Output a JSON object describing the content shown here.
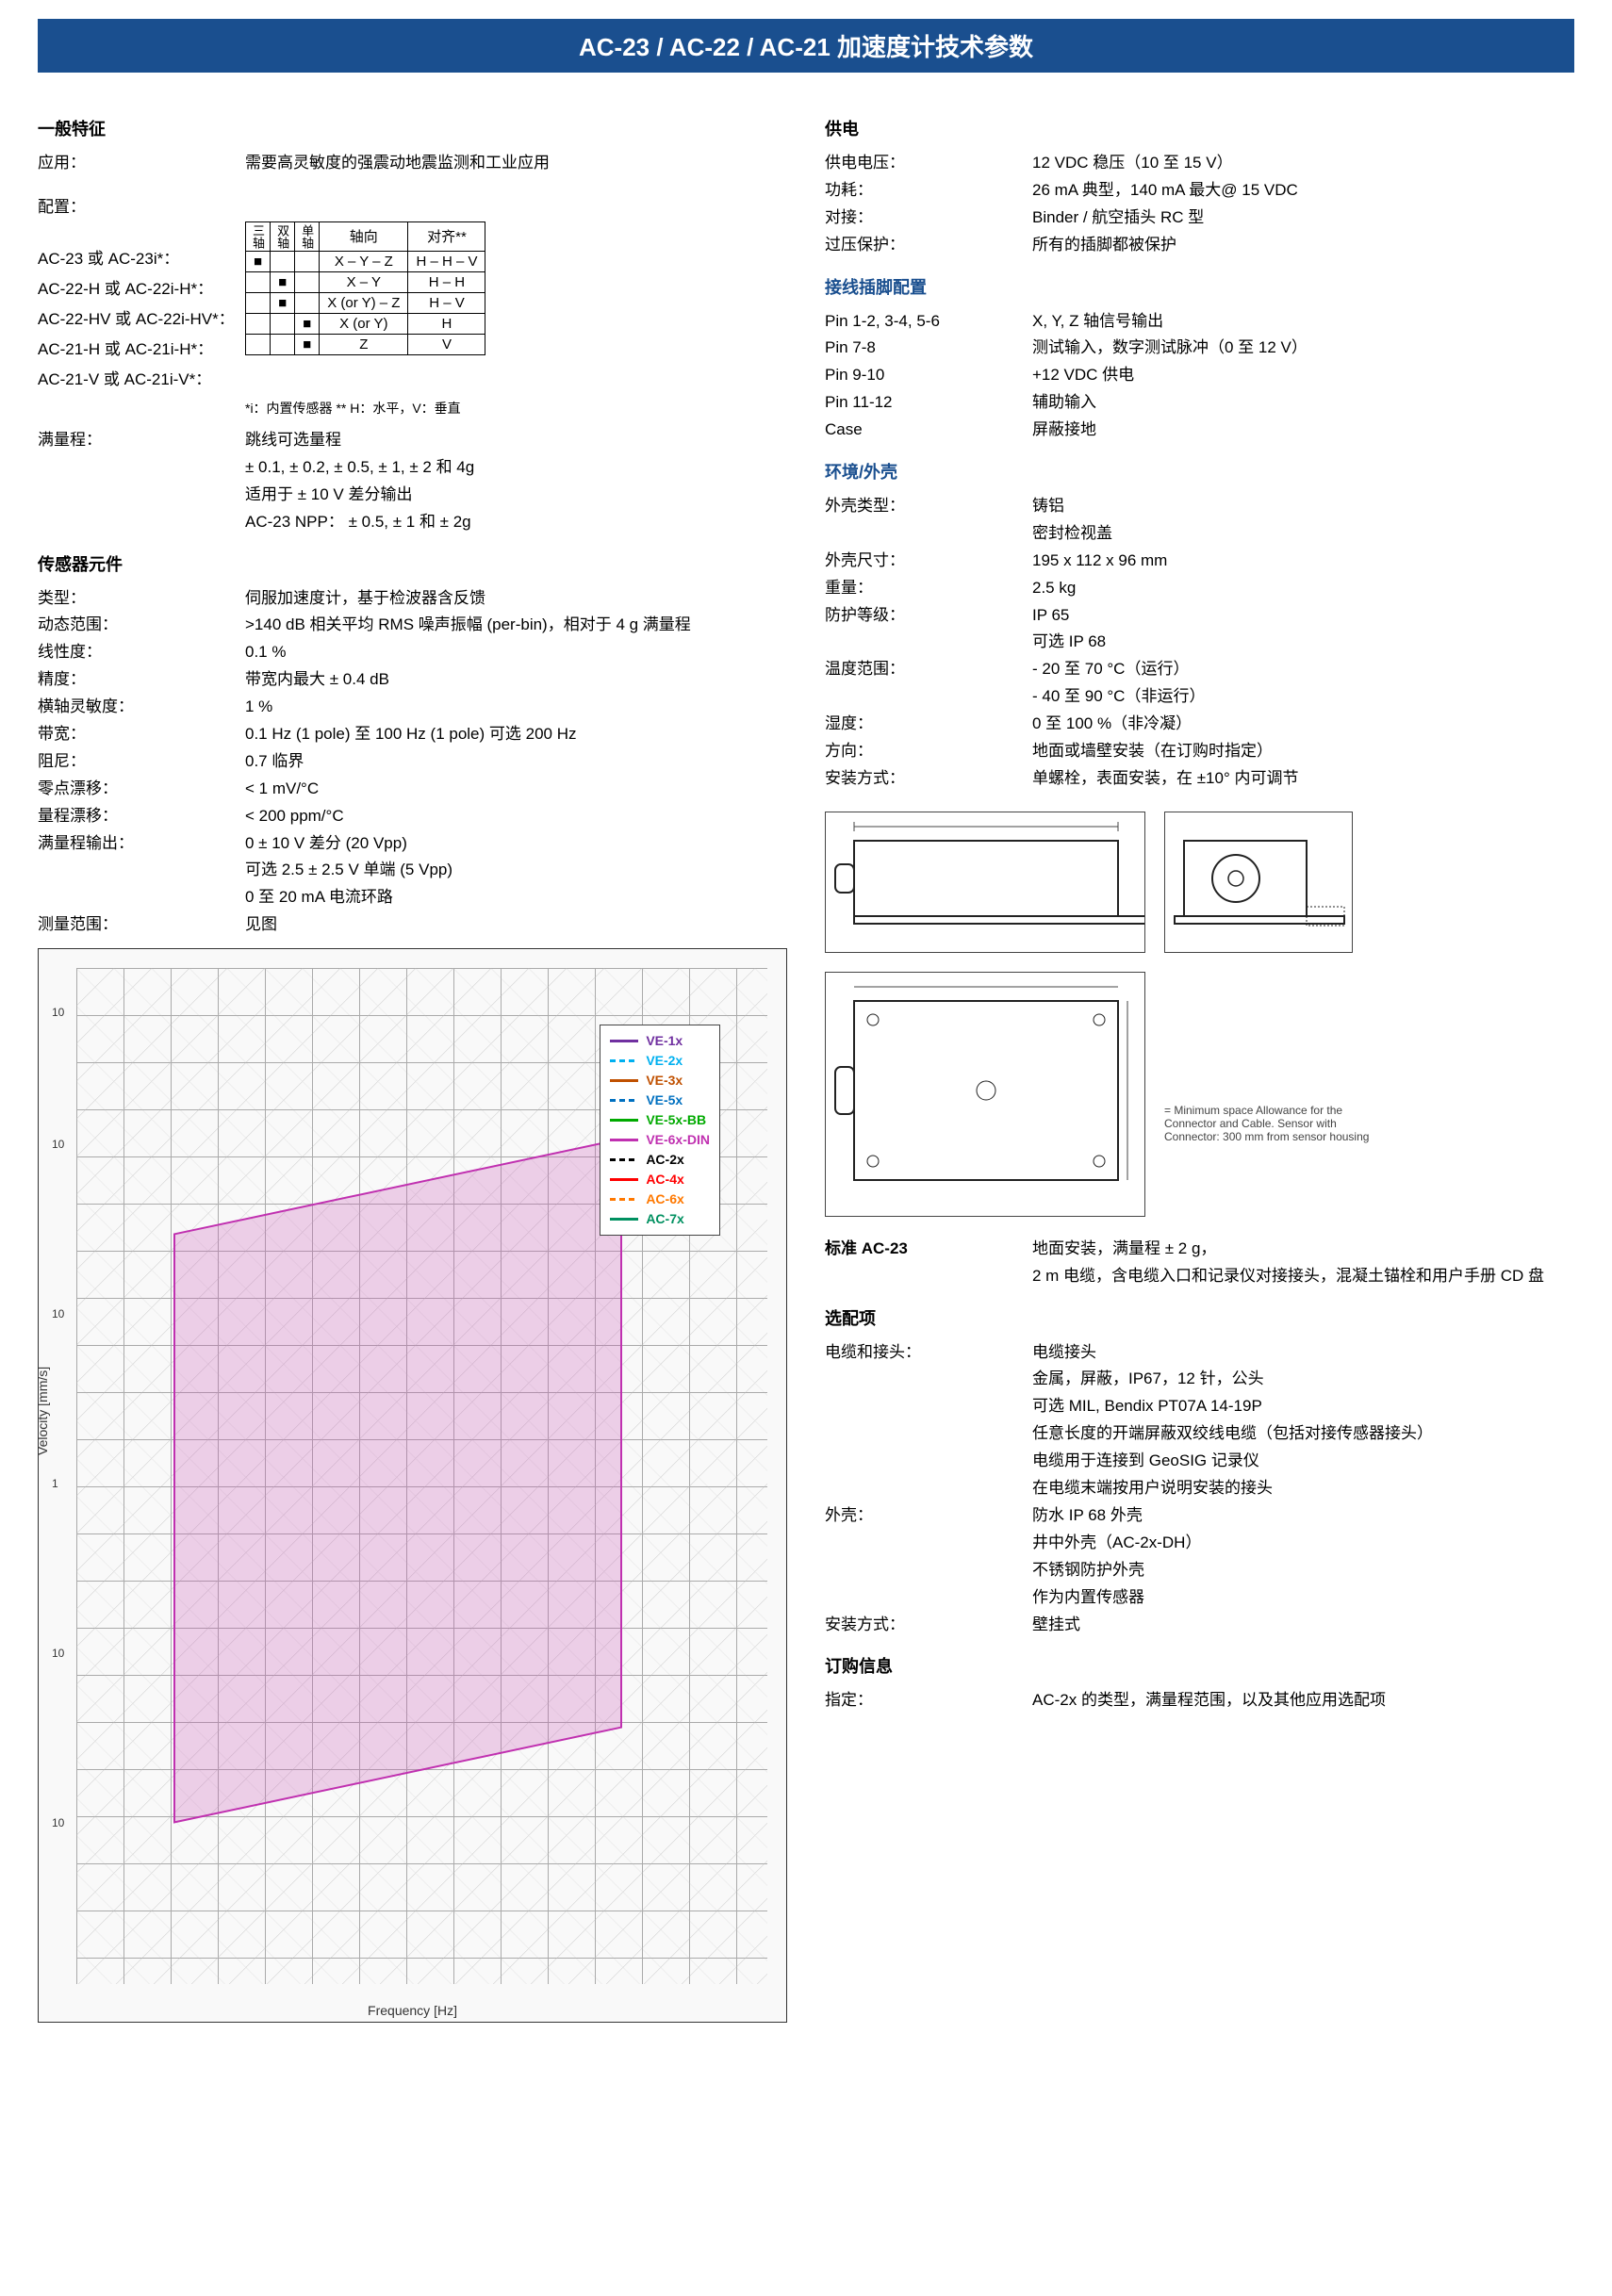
{
  "header": {
    "title": "AC-23 / AC-22 / AC-21 加速度计技术参数"
  },
  "left": {
    "general": {
      "title": "一般特征",
      "app_label": "应用：",
      "app_value": "需要高灵敏度的强震动地震监测和工业应用",
      "config_label": "配置：",
      "config_models": [
        "AC-23 或  AC-23i*：",
        "AC-22-H  或  AC-22i-H*：",
        "AC-22-HV 或  AC-22i-HV*：",
        "AC-21-H  或  AC-21i-H*：",
        "AC-21-V  或  AC-21i-V*："
      ],
      "config_table": {
        "col_headers_rot": [
          "三轴",
          "双轴",
          "单轴"
        ],
        "col_headers": [
          "轴向",
          "对齐**"
        ],
        "rows": [
          [
            "■",
            "",
            "",
            "X – Y – Z",
            "H – H – V"
          ],
          [
            "",
            "■",
            "",
            "X – Y",
            "H – H"
          ],
          [
            "",
            "■",
            "",
            "X (or Y) – Z",
            "H – V"
          ],
          [
            "",
            "",
            "■",
            "X (or Y)",
            "H"
          ],
          [
            "",
            "",
            "■",
            "Z",
            "V"
          ]
        ]
      },
      "footnote": "*i：内置传感器    ** H：水平，V：垂直",
      "fullscale_label": "满量程：",
      "fullscale_l1": "跳线可选量程",
      "fullscale_l2": "± 0.1, ± 0.2, ± 0.5, ± 1, ± 2 和 4g",
      "fullscale_l3": "适用于 ± 10 V 差分输出",
      "fullscale_l4": "AC-23 NPP：  ± 0.5, ± 1 和 ± 2g"
    },
    "sensor": {
      "title": "传感器元件",
      "rows": [
        {
          "label": "类型：",
          "value": "伺服加速度计，基于检波器含反馈"
        },
        {
          "label": "动态范围：",
          "value": ">140 dB 相关平均 RMS 噪声振幅 (per-bin)，相对于 4 g 满量程"
        },
        {
          "label": "线性度：",
          "value": "0.1 %"
        },
        {
          "label": "精度：",
          "value": "带宽内最大 ± 0.4 dB"
        },
        {
          "label": "横轴灵敏度：",
          "value": "1 %"
        },
        {
          "label": "带宽：",
          "value": "0.1 Hz (1 pole) 至 100 Hz (1 pole) 可选 200 Hz"
        },
        {
          "label": "阻尼：",
          "value": "0.7 临界"
        },
        {
          "label": "零点漂移：",
          "value": "< 1 mV/°C"
        },
        {
          "label": "量程漂移：",
          "value": "< 200 ppm/°C"
        },
        {
          "label": "满量程输出：",
          "value": "0 ± 10 V 差分 (20 Vpp)"
        }
      ],
      "fullscale_extra1": "可选 2.5 ± 2.5 V 单端 (5 Vpp)",
      "fullscale_extra2": "0 至 20 mA 电流环路",
      "measure_label": "测量范围：",
      "measure_value": "见图"
    },
    "chart": {
      "ylabel": "Velocity [mm/s]",
      "xlabel": "Frequency [Hz]",
      "ytick_values": [
        "10",
        "10",
        "10",
        "1",
        "10",
        "10"
      ],
      "legend": [
        {
          "name": "VE-1x",
          "color": "#7030a0"
        },
        {
          "name": "VE-2x",
          "color": "#00b0f0",
          "dash": true
        },
        {
          "name": "VE-3x",
          "color": "#c05000"
        },
        {
          "name": "VE-5x",
          "color": "#0070c0",
          "dash": true
        },
        {
          "name": "VE-5x-BB",
          "color": "#0a0"
        },
        {
          "name": "VE-6x-DIN",
          "color": "#c030b0"
        },
        {
          "name": "AC-2x",
          "color": "#000000",
          "dash": true
        },
        {
          "name": "AC-4x",
          "color": "#ff0000"
        },
        {
          "name": "AC-6x",
          "color": "#ff7800",
          "dash": true
        },
        {
          "name": "AC-7x",
          "color": "#009060"
        }
      ]
    }
  },
  "right": {
    "power": {
      "title": "供电",
      "rows": [
        {
          "label": "供电电压：",
          "value": "12 VDC 稳压（10 至 15 V）"
        },
        {
          "label": "功耗：",
          "value": "26 mA 典型，140 mA 最大@ 15 VDC"
        },
        {
          "label": "对接：",
          "value": "Binder / 航空插头 RC 型"
        },
        {
          "label": "过压保护：",
          "value": "所有的插脚都被保护"
        }
      ]
    },
    "wiring": {
      "title": "接线插脚配置",
      "rows": [
        {
          "label": "Pin 1-2, 3-4, 5-6",
          "value": "X, Y, Z 轴信号输出"
        },
        {
          "label": "Pin 7-8",
          "value": "测试输入，数字测试脉冲（0 至 12 V）"
        },
        {
          "label": "Pin 9-10",
          "value": "+12 VDC 供电"
        },
        {
          "label": "Pin 11-12",
          "value": "辅助输入"
        },
        {
          "label": "Case",
          "value": "屏蔽接地"
        }
      ]
    },
    "env": {
      "title": "环境/外壳",
      "rows": [
        {
          "label": "外壳类型：",
          "value": "铸铝"
        }
      ],
      "housing_extra": "密封检视盖",
      "rows2": [
        {
          "label": "外壳尺寸：",
          "value": "195 x 112 x 96 mm"
        },
        {
          "label": "重量：",
          "value": "2.5 kg"
        },
        {
          "label": "防护等级：",
          "value": "IP 65"
        }
      ],
      "ip_extra": "可选 IP 68",
      "temp_label": "温度范围：",
      "temp_l1": "- 20 至 70 °C（运行）",
      "temp_l2": "- 40 至 90 °C（非运行）",
      "rows3": [
        {
          "label": "湿度：",
          "value": "0 至 100 %（非冷凝）"
        },
        {
          "label": "方向：",
          "value": "地面或墙壁安装（在订购时指定）"
        },
        {
          "label": "安装方式：",
          "value": "单螺栓，表面安装，在 ±10° 内可调节"
        }
      ]
    },
    "drawing": {
      "dims": {
        "top_w": 320,
        "top_h": 140,
        "side_w": 180,
        "side_h": 140,
        "plan_w": 320,
        "plan_h": 240
      },
      "note": "= Minimum space Allowance for the Connector and Cable.  Sensor with Connector: 300 mm from sensor housing"
    },
    "standard": {
      "title": "标准 AC-23",
      "l1": "地面安装，满量程  ± 2 g，",
      "l2": "2 m 电缆，含电缆入口和记录仪对接接头，混凝土锚栓和用户手册 CD 盘"
    },
    "options": {
      "title": "选配项",
      "cable_label": "电缆和接头：",
      "cable_lines": [
        "电缆接头",
        "金属，屏蔽，IP67，12 针，公头",
        "可选 MIL, Bendix PT07A 14-19P",
        "任意长度的开端屏蔽双绞线电缆（包括对接传感器接头）",
        "电缆用于连接到 GeoSIG 记录仪",
        "在电缆末端按用户说明安装的接头"
      ],
      "housing_label": "外壳：",
      "housing_lines": [
        "防水 IP 68 外壳",
        "井中外壳（AC-2x-DH）",
        "不锈钢防护外壳",
        "作为内置传感器"
      ],
      "mount_label": "安装方式：",
      "mount_value": "壁挂式"
    },
    "order": {
      "title": "订购信息",
      "label": "指定：",
      "value": "AC-2x 的类型，满量程范围，以及其他应用选配项"
    }
  }
}
